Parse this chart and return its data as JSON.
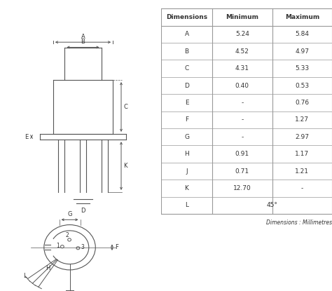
{
  "table_data": {
    "columns": [
      "Dimensions",
      "Minimum",
      "Maximum"
    ],
    "rows": [
      [
        "A",
        "5.24",
        "5.84"
      ],
      [
        "B",
        "4.52",
        "4.97"
      ],
      [
        "C",
        "4.31",
        "5.33"
      ],
      [
        "D",
        "0.40",
        "0.53"
      ],
      [
        "E",
        "-",
        "0.76"
      ],
      [
        "F",
        "-",
        "1.27"
      ],
      [
        "G",
        "-",
        "2.97"
      ],
      [
        "H",
        "0.91",
        "1.17"
      ],
      [
        "J",
        "0.71",
        "1.21"
      ],
      [
        "K",
        "12.70",
        "-"
      ],
      [
        "L",
        "45°",
        ""
      ]
    ]
  },
  "table_note": "Dimensions : Millimetres",
  "bg_color": "#ffffff",
  "line_color": "#555555",
  "text_color": "#333333",
  "table_line_color": "#999999"
}
